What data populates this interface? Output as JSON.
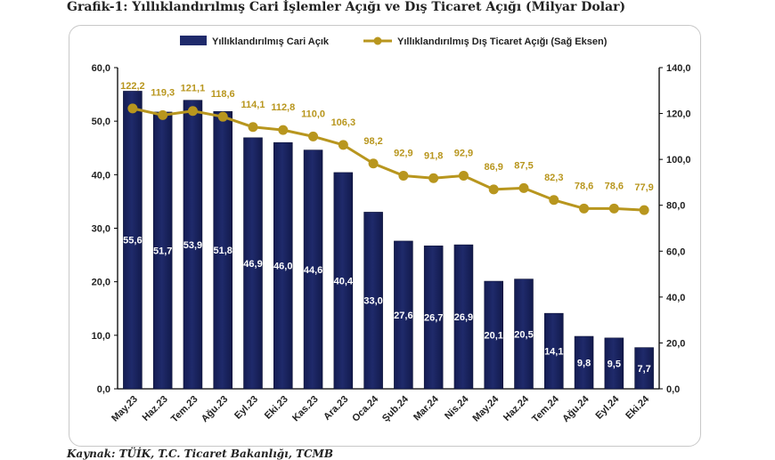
{
  "page": {
    "title": "Grafik-1: Yıllıklandırılmış Cari İşlemler Açığı ve Dış Ticaret Açığı (Milyar Dolar)",
    "source": "Kaynak: TÜİK, T.C. Ticaret Bakanlığı, TCMB"
  },
  "chart_data": {
    "type": "bar",
    "title": "Grafik-1: Yıllıklandırılmış Cari İşlemler Açığı ve Dış Ticaret Açığı (Milyar Dolar)",
    "categories": [
      "May.23",
      "Haz.23",
      "Tem.23",
      "Ağu.23",
      "Eyl.23",
      "Eki.23",
      "Kas.23",
      "Ara.23",
      "Oca.24",
      "Şub.24",
      "Mar.24",
      "Nis.24",
      "May.24",
      "Haz.24",
      "Tem.24",
      "Ağu.24",
      "Eyl.24",
      "Eki.24"
    ],
    "series": [
      {
        "name": "Yıllıklandırılmış Cari Açık",
        "type": "bar",
        "axis": "left",
        "color": "#1f2a6b",
        "values": [
          55.6,
          51.7,
          53.9,
          51.8,
          46.9,
          46.0,
          44.6,
          40.4,
          33.0,
          27.6,
          26.7,
          26.9,
          20.1,
          20.5,
          14.1,
          9.8,
          9.5,
          7.7
        ],
        "labels": [
          "55,6",
          "51,7",
          "53,9",
          "51,8",
          "46,9",
          "46,0",
          "44,6",
          "40,4",
          "33,0",
          "27,6",
          "26,7",
          "26,9",
          "20,1",
          "20,5",
          "14,1",
          "9,8",
          "9,5",
          "7,7"
        ]
      },
      {
        "name": "Yıllıklandırılmış Dış Ticaret Açığı (Sağ Eksen)",
        "type": "line",
        "axis": "right",
        "color": "#b8961e",
        "values": [
          122.2,
          119.3,
          121.1,
          118.6,
          114.1,
          112.8,
          110.0,
          106.3,
          98.2,
          92.9,
          91.8,
          92.9,
          86.9,
          87.5,
          82.3,
          78.6,
          78.6,
          77.9
        ],
        "labels": [
          "122,2",
          "119,3",
          "121,1",
          "118,6",
          "114,1",
          "112,8",
          "110,0",
          "106,3",
          "98,2",
          "92,9",
          "91,8",
          "92,9",
          "86,9",
          "87,5",
          "82,3",
          "78,6",
          "78,6",
          "77,9"
        ]
      }
    ],
    "left_axis": {
      "range": [
        0,
        60
      ],
      "ticks": [
        0,
        10,
        20,
        30,
        40,
        50,
        60
      ],
      "tick_labels": [
        "0,0",
        "10,0",
        "20,0",
        "30,0",
        "40,0",
        "50,0",
        "60,0"
      ]
    },
    "right_axis": {
      "range": [
        0,
        140
      ],
      "ticks": [
        0,
        20,
        40,
        60,
        80,
        100,
        120,
        140
      ],
      "tick_labels": [
        "0,0",
        "20,0",
        "40,0",
        "60,0",
        "80,0",
        "100,0",
        "120,0",
        "140,0"
      ]
    },
    "legend_position": "top",
    "grid": false
  }
}
